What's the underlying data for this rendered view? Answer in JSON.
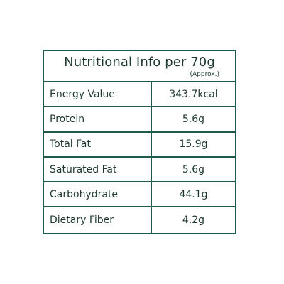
{
  "table": {
    "title": "Nutritional Info per 70g",
    "note": "(Approx.)",
    "rows": [
      {
        "label": "Energy Value",
        "value": "343.7kcal"
      },
      {
        "label": "Protein",
        "value": "5.6g"
      },
      {
        "label": "Total Fat",
        "value": "15.9g"
      },
      {
        "label": "Saturated Fat",
        "value": "5.6g"
      },
      {
        "label": "Carbohydrate",
        "value": "44.1g"
      },
      {
        "label": "Dietary Fiber",
        "value": "4.2g"
      }
    ]
  },
  "colors": {
    "border": "#1f5a4e",
    "text": "#1f3a33",
    "background": "#ffffff"
  }
}
